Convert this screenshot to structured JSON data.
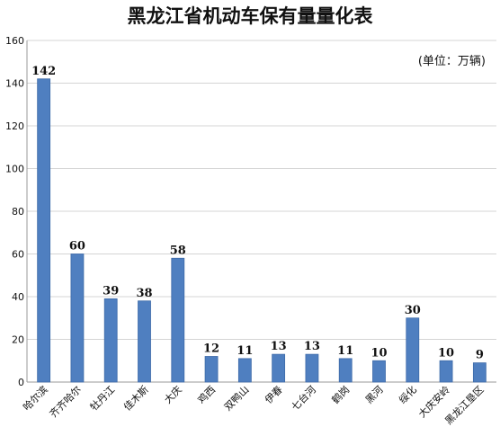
{
  "chart_data": {
    "type": "bar",
    "title": "黑龙江省机动车保有量量化表",
    "unit_note": "(单位：万辆)",
    "categories": [
      "哈尔滨",
      "齐齐哈尔",
      "牡丹江",
      "佳木斯",
      "大庆",
      "鸡西",
      "双鸭山",
      "伊春",
      "七台河",
      "鹤岗",
      "黑河",
      "绥化",
      "大庆安岭",
      "黑龙江垦区"
    ],
    "values": [
      142,
      60,
      39,
      38,
      58,
      12,
      11,
      13,
      13,
      11,
      10,
      30,
      10,
      9
    ],
    "ylim": [
      0,
      160
    ],
    "yticks": [
      0,
      20,
      40,
      60,
      80,
      100,
      120,
      140,
      160
    ],
    "xlabel": "",
    "ylabel": "",
    "grid": true,
    "legend": "none",
    "bar_color": "#4f7fc0"
  }
}
